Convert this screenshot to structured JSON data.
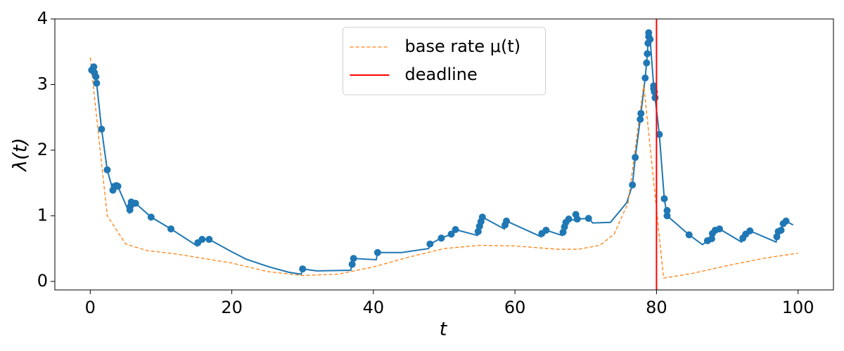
{
  "chart_data": {
    "type": "line",
    "xlabel": "t",
    "ylabel": "λ(t)",
    "xlim": [
      -5,
      105
    ],
    "ylim": [
      -0.13,
      4
    ],
    "xticks": [
      0,
      20,
      40,
      60,
      80,
      100
    ],
    "yticks": [
      0,
      1,
      2,
      3,
      4
    ],
    "grid": false,
    "legend": "upper center",
    "series": [
      {
        "color": "#1f77b4",
        "dashed": false,
        "x": [
          0.2,
          0.5,
          0.6,
          0.8,
          0.9,
          1.6,
          2.4,
          3.2,
          3.4,
          3.7,
          3.9,
          5.5,
          5.6,
          5.7,
          5.8,
          6.4,
          8.6,
          11.4,
          15.1,
          15.2,
          15.8,
          16.8,
          20,
          22,
          25,
          28,
          29.8,
          30.0,
          32,
          36.8,
          37.0,
          37.2,
          40.4,
          40.6,
          44,
          47.8,
          48.0,
          49.6,
          51.0,
          51.6,
          54.7,
          54.8,
          55.0,
          55.2,
          55.4,
          58.5,
          58.6,
          58.8,
          63.7,
          63.8,
          64.4,
          66.7,
          66.8,
          67.0,
          67.2,
          67.6,
          68.5,
          68.6,
          68.8,
          70.4,
          71,
          73.5,
          75.8,
          76.6,
          77.0,
          77.7,
          77.8,
          78.4,
          78.6,
          78.7,
          78.8,
          78.9,
          79.1,
          79.6,
          79.7,
          79.8,
          80.4,
          81.1,
          81.5,
          84.6,
          86.5,
          87.2,
          87.8,
          87.9,
          88.3,
          88.9,
          92.0,
          92.2,
          92.6,
          93.2,
          96.9,
          97.0,
          97.2,
          97.6,
          97.9,
          98.3,
          99.3
        ],
        "values": [
          3.22,
          3.27,
          3.18,
          3.12,
          3.02,
          2.32,
          1.7,
          1.39,
          1.45,
          1.46,
          1.45,
          1.05,
          1.09,
          1.15,
          1.21,
          1.19,
          0.98,
          0.8,
          0.54,
          0.59,
          0.64,
          0.64,
          0.45,
          0.34,
          0.23,
          0.14,
          0.11,
          0.19,
          0.16,
          0.17,
          0.26,
          0.35,
          0.33,
          0.44,
          0.44,
          0.5,
          0.57,
          0.66,
          0.72,
          0.79,
          0.7,
          0.76,
          0.84,
          0.91,
          0.98,
          0.8,
          0.86,
          0.92,
          0.68,
          0.73,
          0.78,
          0.7,
          0.75,
          0.83,
          0.9,
          0.95,
          0.93,
          1.02,
          0.95,
          0.96,
          0.89,
          0.9,
          1.2,
          1.47,
          1.89,
          2.47,
          2.56,
          3.1,
          3.33,
          3.47,
          3.63,
          3.79,
          3.69,
          2.98,
          2.89,
          2.8,
          2.24,
          1.26,
          1.0,
          0.71,
          0.56,
          0.62,
          0.65,
          0.73,
          0.78,
          0.8,
          0.6,
          0.66,
          0.72,
          0.77,
          0.6,
          0.68,
          0.76,
          0.78,
          0.88,
          0.92,
          0.86
        ]
      },
      {
        "name": "base rate μ(t)",
        "color": "#ff7f0e",
        "dashed": true,
        "x": [
          0,
          2.4,
          5,
          8,
          12,
          20,
          25,
          30,
          35,
          40,
          45,
          50,
          55,
          60,
          66,
          69,
          72,
          74,
          76,
          78.2,
          81,
          85,
          90,
          95,
          100
        ],
        "values": [
          3.41,
          1.0,
          0.57,
          0.47,
          0.42,
          0.28,
          0.15,
          0.09,
          0.11,
          0.22,
          0.37,
          0.5,
          0.55,
          0.54,
          0.49,
          0.49,
          0.55,
          0.72,
          1.2,
          3.0,
          0.05,
          0.12,
          0.24,
          0.35,
          0.43
        ]
      }
    ],
    "events": {
      "type": "scatter",
      "color": "#1f77b4",
      "x": [
        0.2,
        0.5,
        0.6,
        0.8,
        0.9,
        1.6,
        2.4,
        3.2,
        3.4,
        3.7,
        3.9,
        5.6,
        5.7,
        5.8,
        6.4,
        8.6,
        11.4,
        15.2,
        15.8,
        16.8,
        30.0,
        37.0,
        37.2,
        40.6,
        48.0,
        49.6,
        51.0,
        51.6,
        54.8,
        55.0,
        55.2,
        55.4,
        58.6,
        58.8,
        63.8,
        64.4,
        66.8,
        67.0,
        67.2,
        67.6,
        68.6,
        68.8,
        70.4,
        76.6,
        77.0,
        77.7,
        77.8,
        78.4,
        78.6,
        78.7,
        78.8,
        78.9,
        78.9,
        79.1,
        79.6,
        79.6,
        79.7,
        79.8,
        80.4,
        81.1,
        81.5,
        81.5,
        84.6,
        87.2,
        87.8,
        87.9,
        88.3,
        88.9,
        92.2,
        92.6,
        93.2,
        97.0,
        97.2,
        97.6,
        97.9,
        98.3
      ],
      "values": [
        3.22,
        3.27,
        3.18,
        3.12,
        3.02,
        2.32,
        1.7,
        1.39,
        1.45,
        1.46,
        1.45,
        1.09,
        1.15,
        1.21,
        1.19,
        0.98,
        0.8,
        0.59,
        0.64,
        0.64,
        0.19,
        0.26,
        0.35,
        0.44,
        0.57,
        0.66,
        0.72,
        0.79,
        0.76,
        0.84,
        0.91,
        0.98,
        0.86,
        0.92,
        0.73,
        0.78,
        0.75,
        0.83,
        0.9,
        0.95,
        1.02,
        0.95,
        0.96,
        1.47,
        1.89,
        2.47,
        2.56,
        3.1,
        3.33,
        3.47,
        3.63,
        3.73,
        3.79,
        3.69,
        2.98,
        2.94,
        2.89,
        2.8,
        2.24,
        1.26,
        1.08,
        1.0,
        0.71,
        0.62,
        0.65,
        0.73,
        0.78,
        0.8,
        0.66,
        0.72,
        0.77,
        0.68,
        0.76,
        0.78,
        0.88,
        0.92
      ]
    },
    "deadline": {
      "name": "deadline",
      "color": "#ff0000",
      "x": 80
    }
  }
}
